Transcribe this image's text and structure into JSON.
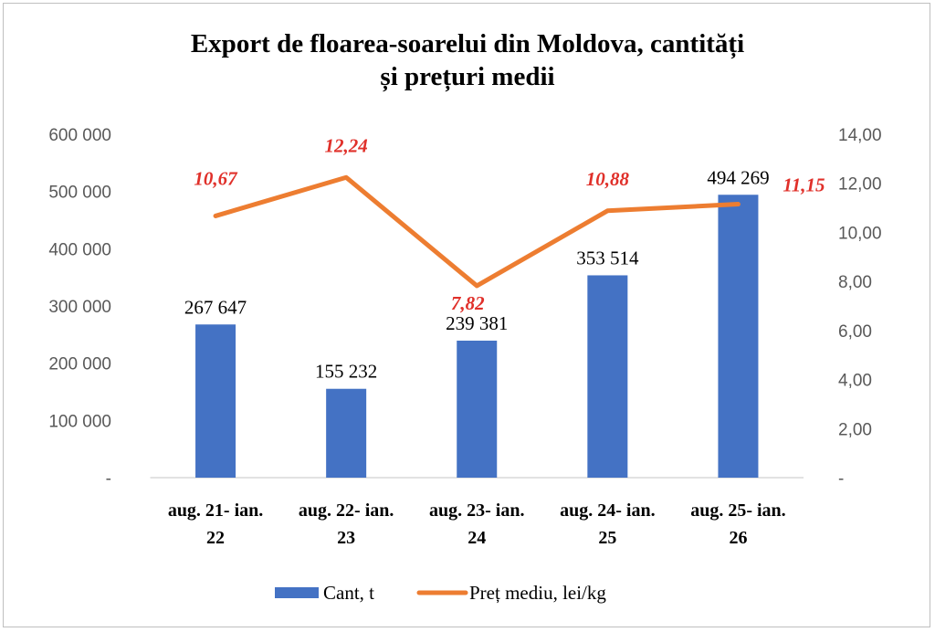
{
  "chart_data": {
    "type": "bar+line",
    "title_line1": "Export de floarea-soarelui  din  Moldova, cantități",
    "title_line2": "și prețuri medii",
    "categories": [
      [
        "aug. 21- ian.",
        "22"
      ],
      [
        "aug. 22- ian.",
        "23"
      ],
      [
        "aug. 23- ian.",
        "24"
      ],
      [
        "aug. 24- ian.",
        "25"
      ],
      [
        "aug. 25- ian.",
        "26"
      ]
    ],
    "series": [
      {
        "name": "Cant, t",
        "type": "bar",
        "axis": "left",
        "color": "#4472c4",
        "values": [
          267647,
          155232,
          239381,
          353514,
          494269
        ],
        "labels": [
          "267 647",
          "155 232",
          "239 381",
          "353 514",
          "494 269"
        ]
      },
      {
        "name": "Preț mediu, lei/kg",
        "type": "line",
        "axis": "right",
        "color": "#ed7d31",
        "label_color": "#e0302a",
        "values": [
          10.67,
          12.24,
          7.82,
          10.88,
          11.15
        ],
        "labels": [
          "10,67",
          "12,24",
          "7,82",
          "10,88",
          "11,15"
        ]
      }
    ],
    "left_axis": {
      "range": [
        0,
        600000
      ],
      "ticks": [
        "-",
        "100 000",
        "200 000",
        "300 000",
        "400 000",
        "500 000",
        "600 000"
      ]
    },
    "right_axis": {
      "range": [
        0,
        14
      ],
      "ticks": [
        "-",
        "2,00",
        "4,00",
        "6,00",
        "8,00",
        "10,00",
        "12,00",
        "14,00"
      ]
    },
    "grid": false,
    "legend": "bottom"
  }
}
